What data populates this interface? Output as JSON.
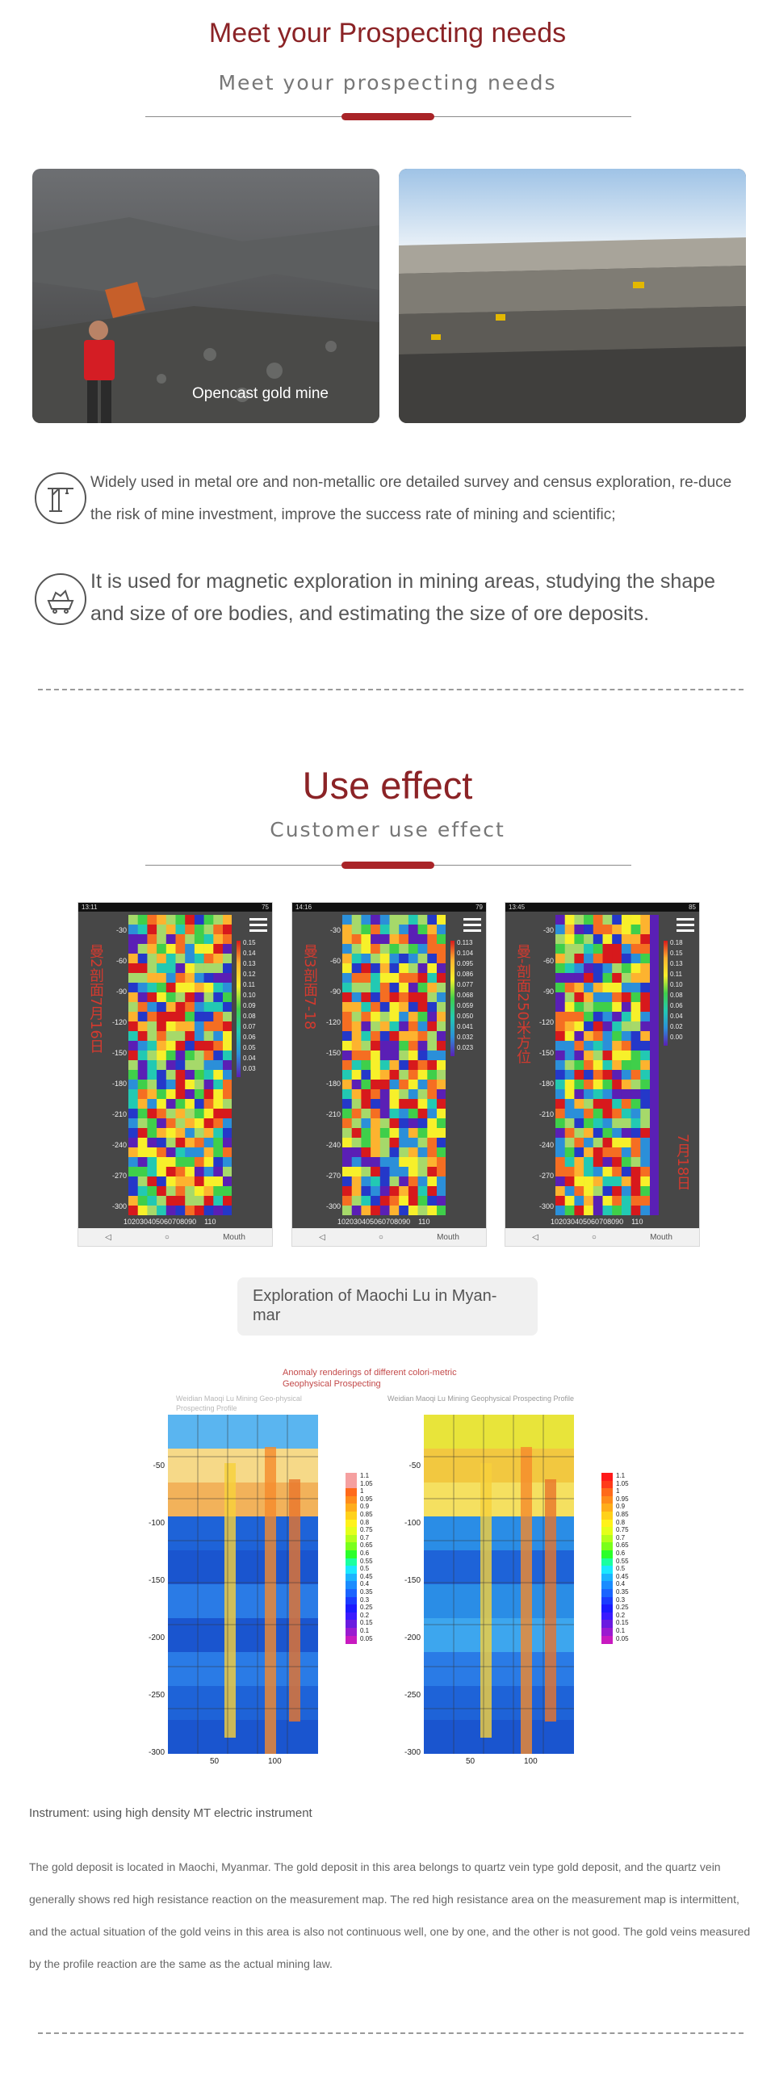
{
  "section1": {
    "title": "Meet your Prospecting needs",
    "subtitle": "Meet your prospecting needs",
    "photo_left_caption": "Opencast gold mine",
    "features": [
      {
        "icon": "crane-icon",
        "text": "Widely used in metal ore and non-metallic ore detailed survey and census exploration, re-duce the risk of mine investment, improve the success rate of mining and scientific;"
      },
      {
        "icon": "ore-cart-icon",
        "text": "It is used for magnetic exploration in mining areas, studying the shape and size of ore bodies, and estimating the size of ore deposits."
      }
    ]
  },
  "section2": {
    "title": "Use effect",
    "subtitle": "Customer use effect",
    "phones": [
      {
        "time": "13:11",
        "battery": "75",
        "label": "曼2剖面7月16日",
        "legend": [
          "0.15",
          "0.14",
          "0.13",
          "0.12",
          "0.11",
          "0.10",
          "0.09",
          "0.08",
          "0.07",
          "0.06",
          "0.05",
          "0.04",
          "0.03"
        ],
        "label2": ""
      },
      {
        "time": "14:16",
        "battery": "79",
        "label": "曼3剖面7-18",
        "legend": [
          "0.113",
          "0.104",
          "0.095",
          "0.086",
          "0.077",
          "0.068",
          "0.059",
          "0.050",
          "0.041",
          "0.032",
          "0.023"
        ],
        "label2": ""
      },
      {
        "time": "13:45",
        "battery": "85",
        "label": "曼-剖面250米方位",
        "legend": [
          "0.18",
          "0.15",
          "0.13",
          "0.11",
          "0.10",
          "0.08",
          "0.06",
          "0.04",
          "0.02",
          "0.00"
        ],
        "label2": "7月18日"
      }
    ],
    "yticks": [
      "-30",
      "-60",
      "-90",
      "-120",
      "-150",
      "-180",
      "-210",
      "-240",
      "-270",
      "-300"
    ],
    "xticks": "102030405060708090    110",
    "nav_mouth": "Mouth",
    "caption": "Exploration of Maochi Lu in Myan-mar",
    "anomaly_title": "Anomaly renderings of different colori-metric Geophysical Prospecting",
    "map_left_title": "Weidian Maoqi Lu Mining Geo-physical Prospecting Profile",
    "map_right_title": "Weidian Maoqi Lu Mining Geophysical Prospecting Profile",
    "map_yticks": [
      "-50",
      "-100",
      "-150",
      "-200",
      "-250",
      "-300"
    ],
    "map_xticks": [
      "50",
      "100"
    ],
    "map_legend": [
      "1.1",
      "1.05",
      "1",
      "0.95",
      "0.9",
      "0.85",
      "0.8",
      "0.75",
      "0.7",
      "0.65",
      "0.6",
      "0.55",
      "0.5",
      "0.45",
      "0.4",
      "0.35",
      "0.3",
      "0.25",
      "0.2",
      "0.15",
      "0.1",
      "0.05"
    ],
    "instrument": "Instrument: using high density MT electric instrument",
    "paragraph": "The gold deposit is located in Maochi, Myanmar. The gold deposit in this area belongs to quartz vein type gold deposit, and the quartz vein generally shows red high resistance reaction on the measurement map. The red high resistance area on the measurement map is intermittent, and the actual situation of the gold veins in this area is also not continuous well, one by one, and the other is not good. The gold veins measured by the profile reaction are the same as the actual mining law."
  },
  "colors": {
    "accent": "#a92428",
    "title": "#8b2326"
  }
}
